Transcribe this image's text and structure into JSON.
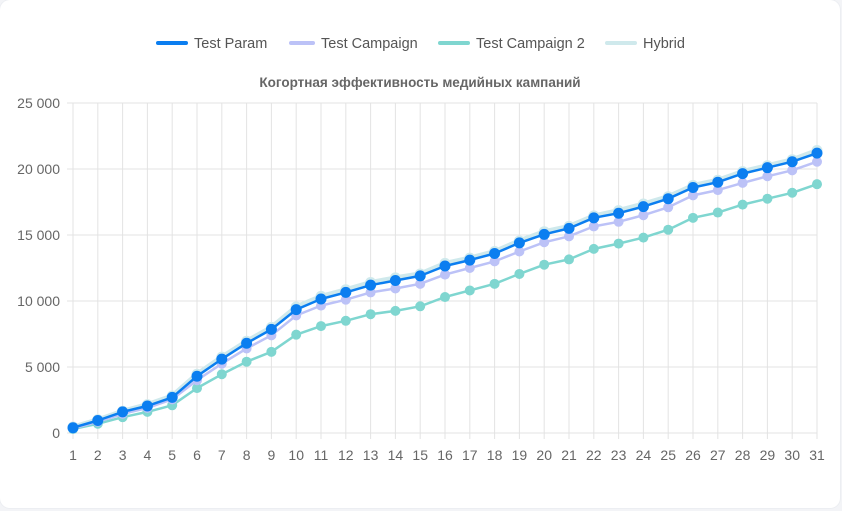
{
  "chart_data": {
    "type": "line",
    "title": "Когортная эффективность медийных кампаний",
    "xlabel": "",
    "ylabel": "",
    "categories": [
      "1",
      "2",
      "3",
      "4",
      "5",
      "6",
      "7",
      "8",
      "9",
      "10",
      "11",
      "12",
      "13",
      "14",
      "15",
      "16",
      "17",
      "18",
      "19",
      "20",
      "21",
      "22",
      "23",
      "24",
      "25",
      "26",
      "27",
      "28",
      "29",
      "30",
      "31"
    ],
    "ylim": [
      0,
      25000
    ],
    "y_ticks": [
      0,
      5000,
      10000,
      15000,
      20000,
      25000
    ],
    "y_tick_labels": [
      "0",
      "5 000",
      "10 000",
      "15 000",
      "20 000",
      "25 000"
    ],
    "grid": true,
    "legend_position": "top-center",
    "series": [
      {
        "name": "Hybrid",
        "color": "#cfe9ec",
        "values": [
          450,
          1000,
          1650,
          2150,
          2800,
          4450,
          5750,
          6950,
          8000,
          9550,
          10350,
          10850,
          11400,
          11750,
          12050,
          12850,
          13250,
          13750,
          14550,
          15250,
          15650,
          16450,
          16850,
          17350,
          17900,
          18750,
          19150,
          19800,
          20250,
          20700,
          21400
        ]
      },
      {
        "name": "Test Campaign 2",
        "color": "#7fd6d0",
        "values": [
          300,
          700,
          1200,
          1600,
          2100,
          3400,
          4450,
          5400,
          6150,
          7450,
          8100,
          8500,
          9000,
          9250,
          9600,
          10300,
          10800,
          11300,
          12050,
          12750,
          13150,
          13950,
          14350,
          14800,
          15400,
          16300,
          16700,
          17300,
          17750,
          18200,
          18850
        ]
      },
      {
        "name": "Test Campaign",
        "color": "#bcc2f7",
        "values": [
          350,
          850,
          1450,
          1900,
          2550,
          4000,
          5250,
          6400,
          7400,
          8900,
          9650,
          10100,
          10650,
          10950,
          11300,
          12000,
          12500,
          13000,
          13750,
          14450,
          14900,
          15650,
          16000,
          16500,
          17100,
          18000,
          18400,
          18950,
          19450,
          19900,
          20550
        ]
      },
      {
        "name": "Test Param",
        "color": "#0b7ef0",
        "values": [
          400,
          950,
          1600,
          2050,
          2700,
          4300,
          5600,
          6800,
          7850,
          9350,
          10150,
          10650,
          11200,
          11550,
          11900,
          12650,
          13100,
          13600,
          14400,
          15050,
          15500,
          16300,
          16650,
          17150,
          17750,
          18600,
          19000,
          19650,
          20100,
          20550,
          21200
        ]
      }
    ],
    "legend_order": [
      "Test Param",
      "Test Campaign",
      "Test Campaign 2",
      "Hybrid"
    ]
  }
}
